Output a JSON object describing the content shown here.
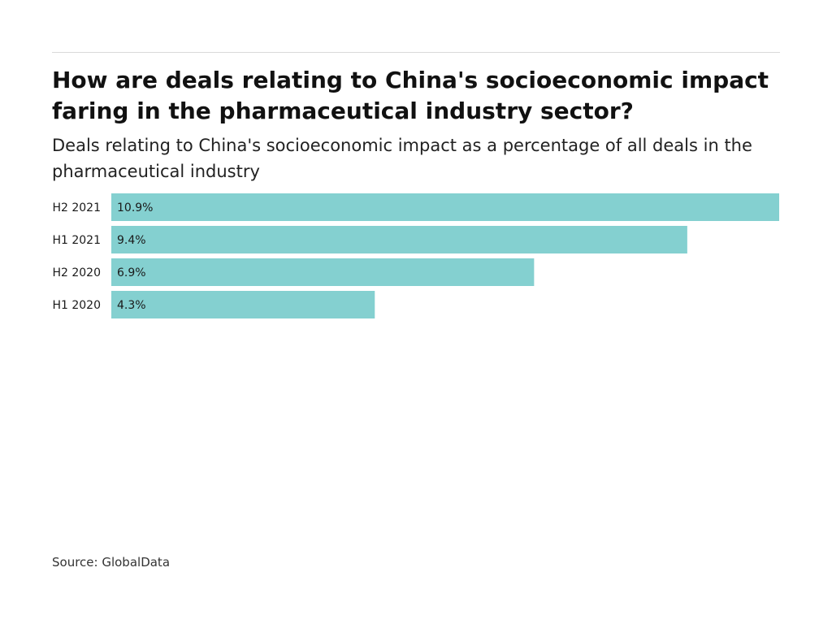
{
  "title": "How are deals relating to China's socioeconomic impact faring in the pharmaceutical industry sector?",
  "subtitle": "Deals relating to China's socioeconomic impact as a percentage of all deals in the pharmaceutical industry",
  "source": "Source: GlobalData",
  "colors": {
    "bar": "#84d0d0",
    "text": "#1a1a1a",
    "rule": "#d9d9d9"
  },
  "chart_data": {
    "type": "bar",
    "orientation": "horizontal",
    "categories": [
      "H2 2021",
      "H1 2021",
      "H2 2020",
      "H1 2020"
    ],
    "values": [
      10.9,
      9.4,
      6.9,
      4.3
    ],
    "value_labels": [
      "10.9%",
      "9.4%",
      "6.9%",
      "4.3%"
    ],
    "unit": "%",
    "xlim": [
      0,
      10.9
    ],
    "grid": false,
    "legend": "none"
  }
}
